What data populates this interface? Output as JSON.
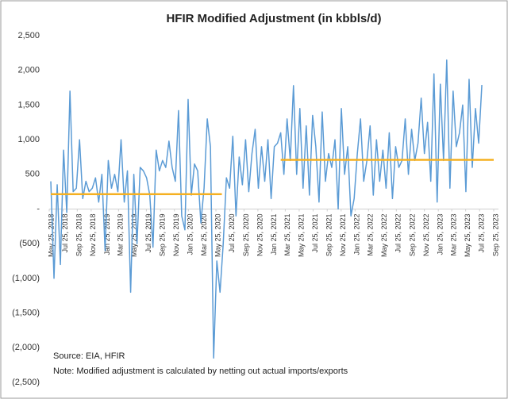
{
  "chart_data": {
    "type": "line",
    "title": "HFIR Modified Adjustment (in kbbls/d)",
    "notes": [
      "Source: EIA, HFIR",
      "Note: Modified adjustment is calculated by netting out actual imports/exports"
    ],
    "ylim": [
      -2500,
      2500
    ],
    "yticks": [
      {
        "value": 2500,
        "label": "2,500"
      },
      {
        "value": 2000,
        "label": "2,000"
      },
      {
        "value": 1500,
        "label": "1,500"
      },
      {
        "value": 1000,
        "label": "1,000"
      },
      {
        "value": 500,
        "label": "500"
      },
      {
        "value": 0,
        "label": "-"
      },
      {
        "value": -500,
        "label": "(500)"
      },
      {
        "value": -1000,
        "label": "(1,000)"
      },
      {
        "value": -1500,
        "label": "(1,500)"
      },
      {
        "value": -2000,
        "label": "(2,000)"
      },
      {
        "value": -2500,
        "label": "(2,500)"
      }
    ],
    "xlim": [
      "2018-05-25",
      "2023-09-25"
    ],
    "xticks": [
      {
        "value": "2018-05-25",
        "label": "May 25, 2018"
      },
      {
        "value": "2018-07-25",
        "label": "Jul 25, 2018"
      },
      {
        "value": "2018-09-25",
        "label": "Sep 25, 2018"
      },
      {
        "value": "2018-11-25",
        "label": "Nov 25, 2018"
      },
      {
        "value": "2019-01-25",
        "label": "Jan 25, 2019"
      },
      {
        "value": "2019-03-25",
        "label": "Mar 25, 2019"
      },
      {
        "value": "2019-05-25",
        "label": "May 25, 2019"
      },
      {
        "value": "2019-07-25",
        "label": "Jul 25, 2019"
      },
      {
        "value": "2019-09-25",
        "label": "Sep 25, 2019"
      },
      {
        "value": "2019-11-25",
        "label": "Nov 25, 2019"
      },
      {
        "value": "2020-01-25",
        "label": "Jan 25, 2020"
      },
      {
        "value": "2020-03-25",
        "label": "Mar 25, 2020"
      },
      {
        "value": "2020-05-25",
        "label": "May 25, 2020"
      },
      {
        "value": "2020-07-25",
        "label": "Jul 25, 2020"
      },
      {
        "value": "2020-09-25",
        "label": "Sep 25, 2020"
      },
      {
        "value": "2020-11-25",
        "label": "Nov 25, 2020"
      },
      {
        "value": "2021-01-25",
        "label": "Jan 25, 2021"
      },
      {
        "value": "2021-03-25",
        "label": "Mar 25, 2021"
      },
      {
        "value": "2021-05-25",
        "label": "May 25, 2021"
      },
      {
        "value": "2021-07-25",
        "label": "Jul 25, 2021"
      },
      {
        "value": "2021-09-25",
        "label": "Sep 25, 2021"
      },
      {
        "value": "2021-11-25",
        "label": "Nov 25, 2021"
      },
      {
        "value": "2022-01-25",
        "label": "Jan 25, 2022"
      },
      {
        "value": "2022-03-25",
        "label": "Mar 25, 2022"
      },
      {
        "value": "2022-05-25",
        "label": "May 25, 2022"
      },
      {
        "value": "2022-07-25",
        "label": "Jul 25, 2022"
      },
      {
        "value": "2022-09-25",
        "label": "Sep 25, 2022"
      },
      {
        "value": "2022-11-25",
        "label": "Nov 25, 2022"
      },
      {
        "value": "2023-01-25",
        "label": "Jan 25, 2023"
      },
      {
        "value": "2023-03-25",
        "label": "Mar 25, 2023"
      },
      {
        "value": "2023-05-25",
        "label": "May 25, 2023"
      },
      {
        "value": "2023-07-25",
        "label": "Jul 25, 2023"
      },
      {
        "value": "2023-09-25",
        "label": "Sep 25, 2023"
      }
    ],
    "series": [
      {
        "color": "#5b9bd5",
        "x": [
          "2018-06-01",
          "2018-06-15",
          "2018-06-29",
          "2018-07-13",
          "2018-07-27",
          "2018-08-10",
          "2018-08-24",
          "2018-09-07",
          "2018-09-21",
          "2018-10-05",
          "2018-10-19",
          "2018-11-02",
          "2018-11-16",
          "2018-11-30",
          "2018-12-14",
          "2018-12-28",
          "2019-01-11",
          "2019-01-25",
          "2019-02-08",
          "2019-02-22",
          "2019-03-08",
          "2019-03-22",
          "2019-04-05",
          "2019-04-19",
          "2019-05-03",
          "2019-05-17",
          "2019-05-31",
          "2019-06-14",
          "2019-06-28",
          "2019-07-12",
          "2019-07-26",
          "2019-08-09",
          "2019-08-23",
          "2019-09-06",
          "2019-09-20",
          "2019-10-04",
          "2019-10-18",
          "2019-11-01",
          "2019-11-15",
          "2019-11-29",
          "2019-12-13",
          "2019-12-27",
          "2020-01-10",
          "2020-01-24",
          "2020-02-07",
          "2020-02-21",
          "2020-03-06",
          "2020-03-20",
          "2020-04-03",
          "2020-04-17",
          "2020-05-01",
          "2020-05-15",
          "2020-05-29",
          "2020-06-12",
          "2020-06-26",
          "2020-07-10",
          "2020-07-24",
          "2020-08-07",
          "2020-08-21",
          "2020-09-04",
          "2020-09-18",
          "2020-10-02",
          "2020-10-16",
          "2020-10-30",
          "2020-11-13",
          "2020-11-27",
          "2020-12-11",
          "2020-12-25",
          "2021-01-08",
          "2021-01-22",
          "2021-02-05",
          "2021-02-19",
          "2021-03-05",
          "2021-03-19",
          "2021-04-02",
          "2021-04-16",
          "2021-04-30",
          "2021-05-14",
          "2021-05-28",
          "2021-06-11",
          "2021-06-25",
          "2021-07-09",
          "2021-07-23",
          "2021-08-06",
          "2021-08-20",
          "2021-09-03",
          "2021-09-17",
          "2021-10-01",
          "2021-10-15",
          "2021-10-29",
          "2021-11-12",
          "2021-11-26",
          "2021-12-10",
          "2021-12-24",
          "2022-01-07",
          "2022-01-21",
          "2022-02-04",
          "2022-02-18",
          "2022-03-04",
          "2022-03-18",
          "2022-04-01",
          "2022-04-15",
          "2022-04-29",
          "2022-05-13",
          "2022-05-27",
          "2022-06-10",
          "2022-06-24",
          "2022-07-08",
          "2022-07-22",
          "2022-08-05",
          "2022-08-19",
          "2022-09-02",
          "2022-09-16",
          "2022-09-30",
          "2022-10-14",
          "2022-10-28",
          "2022-11-11",
          "2022-11-25",
          "2022-12-09",
          "2022-12-23",
          "2023-01-06",
          "2023-01-20",
          "2023-02-03",
          "2023-02-17",
          "2023-03-03",
          "2023-03-17",
          "2023-03-31",
          "2023-04-14",
          "2023-04-28",
          "2023-05-12",
          "2023-05-26",
          "2023-06-09",
          "2023-06-23",
          "2023-07-07",
          "2023-07-21",
          "2023-08-04"
        ],
        "values": [
          400,
          -1000,
          350,
          -800,
          850,
          -50,
          1700,
          250,
          300,
          1000,
          150,
          400,
          250,
          300,
          450,
          100,
          500,
          -600,
          700,
          300,
          500,
          250,
          1000,
          100,
          550,
          -1200,
          500,
          -500,
          600,
          550,
          450,
          200,
          -550,
          850,
          550,
          700,
          600,
          980,
          600,
          400,
          1420,
          -100,
          -300,
          1580,
          200,
          650,
          550,
          -200,
          300,
          1300,
          900,
          -2150,
          -750,
          -1200,
          -500,
          450,
          300,
          1050,
          -100,
          750,
          350,
          1000,
          250,
          800,
          1150,
          300,
          900,
          400,
          1000,
          150,
          900,
          950,
          1100,
          500,
          1300,
          700,
          1780,
          500,
          1450,
          300,
          1200,
          200,
          1350,
          900,
          100,
          1400,
          400,
          800,
          600,
          1000,
          0,
          1450,
          500,
          900,
          -100,
          150,
          800,
          1300,
          400,
          700,
          1200,
          200,
          1000,
          400,
          850,
          300,
          1100,
          150,
          900,
          600,
          700,
          1300,
          500,
          1150,
          700,
          950,
          1600,
          800,
          1250,
          400,
          1950,
          100,
          1800,
          700,
          2150,
          300,
          1700,
          900,
          1100,
          1500,
          250,
          1870,
          600,
          1450,
          950,
          1790
        ]
      },
      {
        "color": "#f5b021",
        "x": [
          "2018-06-01",
          "2020-06-20"
        ],
        "values": [
          215,
          215
        ]
      },
      {
        "color": "#f5b021",
        "x": [
          "2021-03-05",
          "2023-09-25"
        ],
        "values": [
          710,
          710
        ]
      }
    ]
  }
}
